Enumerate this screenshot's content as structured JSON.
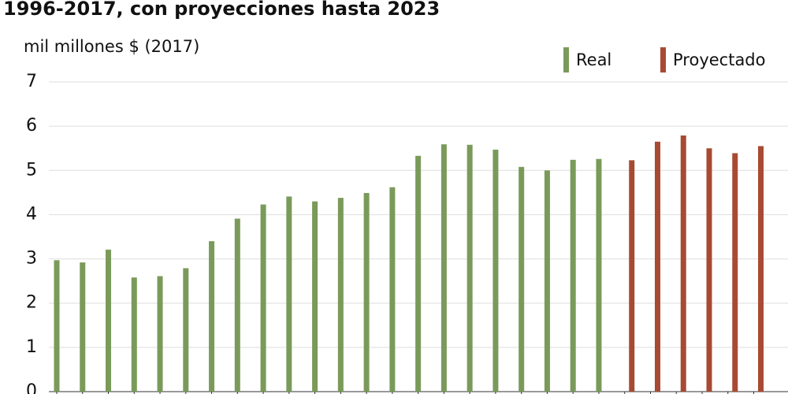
{
  "chart_data": {
    "type": "bar",
    "title": "1996-2017, con proyecciones hasta 2023",
    "subtitle": "mil millones $ (2017)",
    "categories": [
      null,
      null,
      null,
      null,
      null,
      null,
      null,
      null,
      null,
      null,
      null,
      null,
      null,
      null,
      null,
      null,
      null,
      null,
      null,
      null,
      null,
      null,
      null,
      null,
      null,
      null,
      null,
      null
    ],
    "series": [
      {
        "name": "Real",
        "color": "#7a9a5a",
        "values": [
          2.97,
          2.92,
          3.21,
          2.58,
          2.61,
          2.79,
          3.4,
          3.91,
          4.23,
          4.41,
          4.3,
          4.38,
          4.49,
          4.62,
          5.33,
          5.59,
          5.58,
          5.47,
          5.08,
          5.0,
          5.24,
          5.26,
          null,
          null,
          null,
          null,
          null,
          null
        ]
      },
      {
        "name": "Proyectado",
        "color": "#a84a33",
        "values": [
          null,
          null,
          null,
          null,
          null,
          null,
          null,
          null,
          null,
          null,
          null,
          null,
          null,
          null,
          null,
          null,
          null,
          null,
          null,
          null,
          null,
          null,
          5.23,
          5.65,
          5.79,
          5.5,
          5.39,
          5.55
        ]
      }
    ],
    "ylim": [
      0,
      7
    ],
    "yticks": [
      0,
      1,
      2,
      3,
      4,
      5,
      6,
      7
    ],
    "grid": true,
    "legend": "top-right"
  }
}
